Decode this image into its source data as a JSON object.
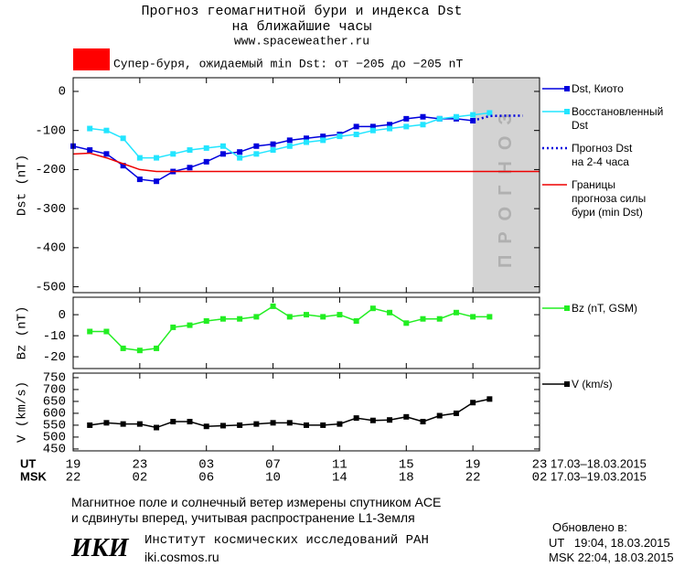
{
  "header": {
    "title": "Прогноз геомагнитной бури и индекса Dst",
    "subtitle": "на ближайшие часы",
    "site": "www.spaceweather.ru"
  },
  "alert": {
    "color": "#ff0000",
    "text": "Супер-буря, ожидаемый min Dst: от −205 до −205 nT"
  },
  "chart_data": [
    {
      "type": "line",
      "ylabel": "Dst (nT)",
      "xlim": [
        0,
        28
      ],
      "ylim": [
        -515,
        35
      ],
      "yticks": [
        0,
        -100,
        -200,
        -300,
        -400,
        -500
      ],
      "forecast_region": {
        "range": [
          24,
          28
        ],
        "label": "ПРОГНОЗ",
        "color": "#d3d3d3"
      },
      "series": [
        {
          "name": "Dst, Киото",
          "color": "#0000dd",
          "markers": true,
          "dashed": false,
          "x": [
            0,
            1,
            2,
            3,
            4,
            5,
            6,
            7,
            8,
            9,
            10,
            11,
            12,
            13,
            14,
            15,
            16,
            17,
            18,
            19,
            20,
            21,
            22,
            23,
            24
          ],
          "values": [
            -140,
            -150,
            -160,
            -190,
            -225,
            -230,
            -205,
            -195,
            -180,
            -160,
            -155,
            -140,
            -135,
            -125,
            -120,
            -115,
            -110,
            -90,
            -90,
            -85,
            -70,
            -65,
            -70,
            -70,
            -75
          ]
        },
        {
          "name": "Восстановленный\nDst",
          "color": "#22e5ff",
          "markers": true,
          "dashed": false,
          "x": [
            1,
            2,
            3,
            4,
            5,
            6,
            7,
            8,
            9,
            10,
            11,
            12,
            13,
            14,
            15,
            16,
            17,
            18,
            19,
            20,
            21,
            22,
            23,
            24,
            25
          ],
          "values": [
            -95,
            -100,
            -120,
            -170,
            -170,
            -160,
            -150,
            -145,
            -140,
            -170,
            -160,
            -150,
            -140,
            -130,
            -125,
            -115,
            -110,
            -100,
            -95,
            -90,
            -85,
            -70,
            -65,
            -60,
            -55
          ]
        },
        {
          "name": "Прогноз Dst\nна 2-4 часа",
          "color": "#0000dd",
          "markers": false,
          "dashed": true,
          "x": [
            24,
            25,
            26,
            27
          ],
          "values": [
            -75,
            -63,
            -62,
            -62
          ]
        },
        {
          "name": "Границы\nпрогноза силы\nбури (min Dst)",
          "color": "#ee0000",
          "markers": false,
          "dashed": false,
          "x": [
            0,
            1,
            2,
            3,
            4,
            5,
            28
          ],
          "values": [
            -160,
            -158,
            -170,
            -185,
            -200,
            -205,
            -205
          ]
        }
      ]
    },
    {
      "type": "line",
      "ylabel": "Bz (nT)",
      "xlim": [
        0,
        28
      ],
      "ylim": [
        -25.6,
        8.3
      ],
      "yticks": [
        0,
        -10,
        -20
      ],
      "series": [
        {
          "name": "Bz (nT, GSM)",
          "color": "#22ee22",
          "markers": true,
          "dashed": false,
          "x": [
            1,
            2,
            3,
            4,
            5,
            6,
            7,
            8,
            9,
            10,
            11,
            12,
            13,
            14,
            15,
            16,
            17,
            18,
            19,
            20,
            21,
            22,
            23,
            24,
            25
          ],
          "values": [
            -8,
            -8,
            -16,
            -17,
            -16,
            -6,
            -5,
            -3,
            -2,
            -2,
            -1,
            4,
            -1,
            0,
            -1,
            0,
            -3,
            3,
            1,
            -4,
            -2,
            -2,
            1,
            -1,
            -1
          ]
        }
      ]
    },
    {
      "type": "line",
      "ylabel": "V (km/s)",
      "xlim": [
        0,
        28
      ],
      "ylim": [
        442,
        769
      ],
      "yticks": [
        450,
        500,
        550,
        600,
        650,
        700,
        750
      ],
      "xticks": [
        {
          "value": 0,
          "label": "19"
        },
        {
          "value": 4,
          "label": "23"
        },
        {
          "value": 8,
          "label": "03"
        },
        {
          "value": 12,
          "label": "07"
        },
        {
          "value": 16,
          "label": "11"
        },
        {
          "value": 20,
          "label": "15"
        },
        {
          "value": 24,
          "label": "19"
        },
        {
          "value": 28,
          "label": "23"
        }
      ],
      "xticks_msk": [
        "22",
        "02",
        "06",
        "10",
        "14",
        "18",
        "22",
        "02"
      ],
      "xaxis_ut": "UT",
      "xaxis_msk": "MSK",
      "range_ut": "17.03–18.03.2015",
      "range_msk": "17.03–19.03.2015",
      "series": [
        {
          "name": "V (km/s)",
          "color": "#000000",
          "markers": true,
          "dashed": false,
          "x": [
            1,
            2,
            3,
            4,
            5,
            6,
            7,
            8,
            9,
            10,
            11,
            12,
            13,
            14,
            15,
            16,
            17,
            18,
            19,
            20,
            21,
            22,
            23,
            24,
            25
          ],
          "values": [
            550,
            560,
            555,
            555,
            540,
            565,
            565,
            545,
            548,
            550,
            555,
            560,
            560,
            550,
            550,
            555,
            580,
            570,
            572,
            585,
            565,
            590,
            600,
            645,
            660
          ]
        }
      ]
    }
  ],
  "footer": {
    "note1": "Магнитное поле и солнечный ветер измерены спутником ACE",
    "note2": "и сдвинуты вперед, учитывая распространение L1-Земля",
    "logo": "ИКИ",
    "institute": "Институт космических исследований РАН",
    "url": "iki.cosmos.ru",
    "updated": "Обновлено в:",
    "ut_time": "UT   19:04, 18.03.2015",
    "msk_time": "MSK 22:04, 18.03.2015"
  }
}
